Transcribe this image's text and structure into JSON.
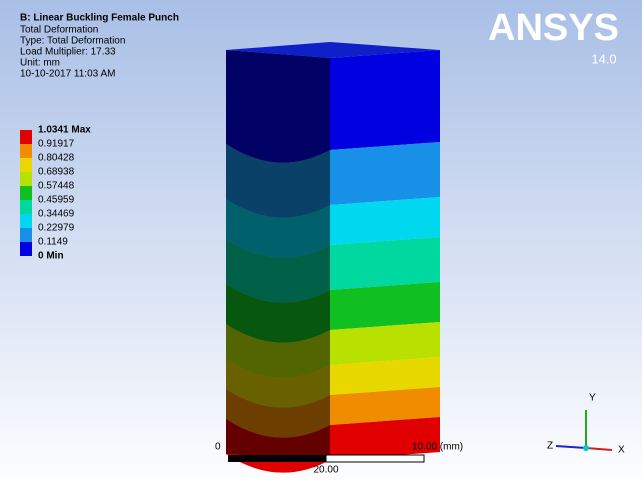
{
  "header": {
    "title": "B: Linear Buckling Female Punch",
    "lines": [
      "Total Deformation",
      "Type: Total Deformation",
      "Load Multiplier: 17.33",
      "Unit: mm",
      "10-10-2017 11:03 AM"
    ]
  },
  "legend": {
    "labels": [
      "1.0341 Max",
      "0.91917",
      "0.80428",
      "0.68938",
      "0.57448",
      "0.45959",
      "0.34469",
      "0.22979",
      "0.1149",
      "0 Min"
    ],
    "colors": [
      "#e00000",
      "#f08c00",
      "#e8d800",
      "#b8e000",
      "#10c020",
      "#00d8a0",
      "#00d8f0",
      "#1890e8",
      "#0000e0"
    ]
  },
  "logo": {
    "name": "ANSYS",
    "version": "14.0"
  },
  "scale": {
    "start": "0",
    "mid": "10.00 (mm)",
    "end": "20.00"
  },
  "triad": {
    "y": "Y",
    "z": "Z",
    "x": "X"
  }
}
